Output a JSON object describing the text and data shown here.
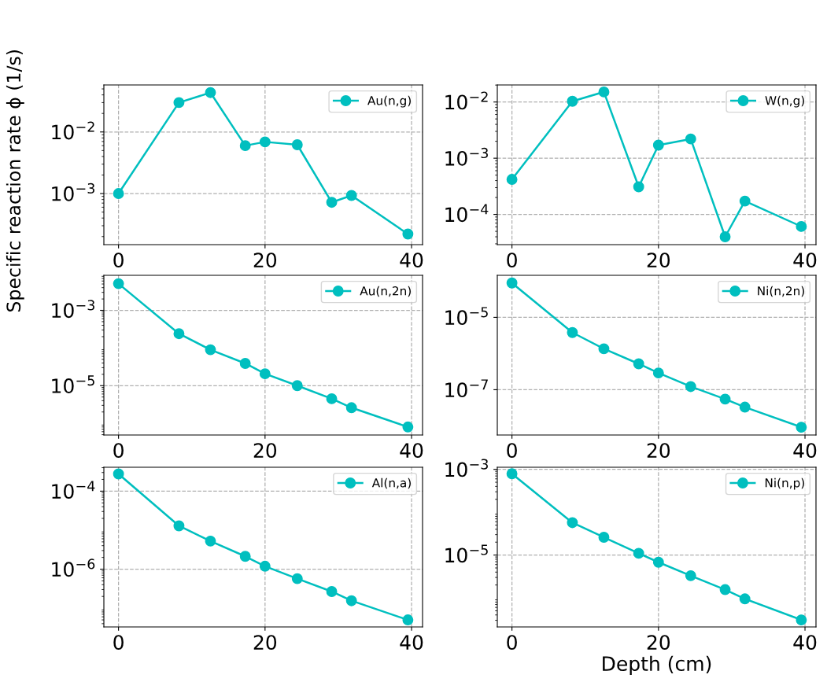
{
  "chart_data": [
    {
      "type": "line",
      "ylabel": "Specific reaction rate ϕ (1/s)",
      "x": [
        0,
        8.25,
        12.55,
        17.3,
        20,
        24.4,
        29.1,
        31.8,
        39.5
      ],
      "series": [
        {
          "name": "Au(n,g)",
          "color": "#00bfbf",
          "values": [
            0.001,
            0.03,
            0.0436,
            0.006,
            0.0069,
            0.0062,
            0.00072,
            0.00093,
            0.00022
          ]
        }
      ],
      "log": "y",
      "xlim": [
        -2,
        41.5
      ],
      "xticks": [
        0,
        20,
        40
      ],
      "ylim": [
        0.000148,
        0.058
      ],
      "yticks": [
        {
          "value": 0.001,
          "label": "10$^{−3}$"
        },
        {
          "value": 0.01,
          "label": "10$^{−2}$"
        }
      ],
      "grid": true,
      "legend": "top right",
      "marker": "circle",
      "line_style": "solid"
    },
    {
      "type": "line",
      "x": [
        0,
        8.25,
        12.55,
        17.3,
        20,
        24.4,
        29.1,
        31.8,
        39.5
      ],
      "series": [
        {
          "name": "W(n,g)",
          "color": "#00bfbf",
          "values": [
            0.00042,
            0.0103,
            0.0151,
            0.00031,
            0.00171,
            0.0022,
            4e-05,
            0.000173,
            6.1e-05
          ]
        }
      ],
      "log": "y",
      "xlim": [
        -2,
        41.5
      ],
      "xticks": [
        0,
        20,
        40
      ],
      "ylim": [
        2.9e-05,
        0.0201
      ],
      "yticks": [
        {
          "value": 0.0001,
          "label": "10$^{−4}$"
        },
        {
          "value": 0.001,
          "label": "10$^{−3}$"
        },
        {
          "value": 0.01,
          "label": "10$^{−2}$"
        }
      ],
      "grid": true,
      "legend": "top right",
      "marker": "circle",
      "line_style": "solid"
    },
    {
      "type": "line",
      "x": [
        0,
        8.25,
        12.55,
        17.3,
        20,
        24.4,
        29.1,
        31.8,
        39.5
      ],
      "series": [
        {
          "name": "Au(n,2n)",
          "color": "#00bfbf",
          "values": [
            0.0051,
            0.00024,
            9e-05,
            3.9e-05,
            2.07e-05,
            1e-05,
            4.5e-06,
            2.6e-06,
            8e-07
          ]
        }
      ],
      "log": "y",
      "xlim": [
        -2,
        41.5
      ],
      "xticks": [
        0,
        20,
        40
      ],
      "ylim": [
        4.9e-07,
        0.0085
      ],
      "yticks": [
        {
          "value": 1e-05,
          "label": "10$^{−5}$"
        },
        {
          "value": 0.001,
          "label": "10$^{−3}$"
        }
      ],
      "grid": true,
      "legend": "top right",
      "marker": "circle",
      "line_style": "solid"
    },
    {
      "type": "line",
      "x": [
        0,
        8.25,
        12.55,
        17.3,
        20,
        24.4,
        29.1,
        31.8,
        39.5
      ],
      "series": [
        {
          "name": "Ni(n,2n)",
          "color": "#00bfbf",
          "values": [
            8.9e-05,
            3.8e-06,
            1.35e-06,
            5.2e-07,
            2.9e-07,
            1.22e-07,
            5.5e-08,
            3.3e-08,
            9.2e-09
          ]
        }
      ],
      "log": "y",
      "xlim": [
        -2,
        41.5
      ],
      "xticks": [
        0,
        20,
        40
      ],
      "ylim": [
        5.6e-09,
        0.000145
      ],
      "yticks": [
        {
          "value": 1e-07,
          "label": "10$^{−7}$"
        },
        {
          "value": 1e-05,
          "label": "10$^{−5}$"
        }
      ],
      "grid": true,
      "legend": "top right",
      "marker": "circle",
      "line_style": "solid"
    },
    {
      "type": "line",
      "x": [
        0,
        8.25,
        12.55,
        17.3,
        20,
        24.4,
        29.1,
        31.8,
        39.5
      ],
      "series": [
        {
          "name": "Al(n,a)",
          "color": "#00bfbf",
          "values": [
            0.000276,
            1.29e-05,
            5.25e-06,
            2.13e-06,
            1.19e-06,
            5.7e-07,
            2.67e-07,
            1.55e-07,
            5e-08
          ]
        }
      ],
      "log": "y",
      "xlim": [
        -2,
        41.5
      ],
      "xticks": [
        0,
        20,
        40
      ],
      "ylim": [
        3.3e-08,
        0.00041
      ],
      "yticks": [
        {
          "value": 1e-06,
          "label": "10$^{−6}$"
        },
        {
          "value": 0.0001,
          "label": "10$^{−4}$"
        }
      ],
      "grid": true,
      "legend": "top right",
      "marker": "circle",
      "line_style": "solid"
    },
    {
      "type": "line",
      "xlabel": "Depth (cm)",
      "x": [
        0,
        8.25,
        12.55,
        17.3,
        20,
        24.4,
        29.1,
        31.8,
        39.5
      ],
      "series": [
        {
          "name": "Ni(n,p)",
          "color": "#00bfbf",
          "values": [
            0.00079,
            5.7e-05,
            2.6e-05,
            1.1e-05,
            6.8e-06,
            3.3e-06,
            1.56e-06,
            9.5e-07,
            3.06e-07
          ]
        }
      ],
      "log": "y",
      "xlim": [
        -2,
        41.5
      ],
      "xticks": [
        0,
        20,
        40
      ],
      "ylim": [
        2.1e-07,
        0.00112
      ],
      "yticks": [
        {
          "value": 1e-05,
          "label": "10$^{−5}$"
        },
        {
          "value": 0.001,
          "label": "10$^{−3}$"
        }
      ],
      "grid": true,
      "legend": "top right",
      "marker": "circle",
      "line_style": "solid"
    }
  ]
}
